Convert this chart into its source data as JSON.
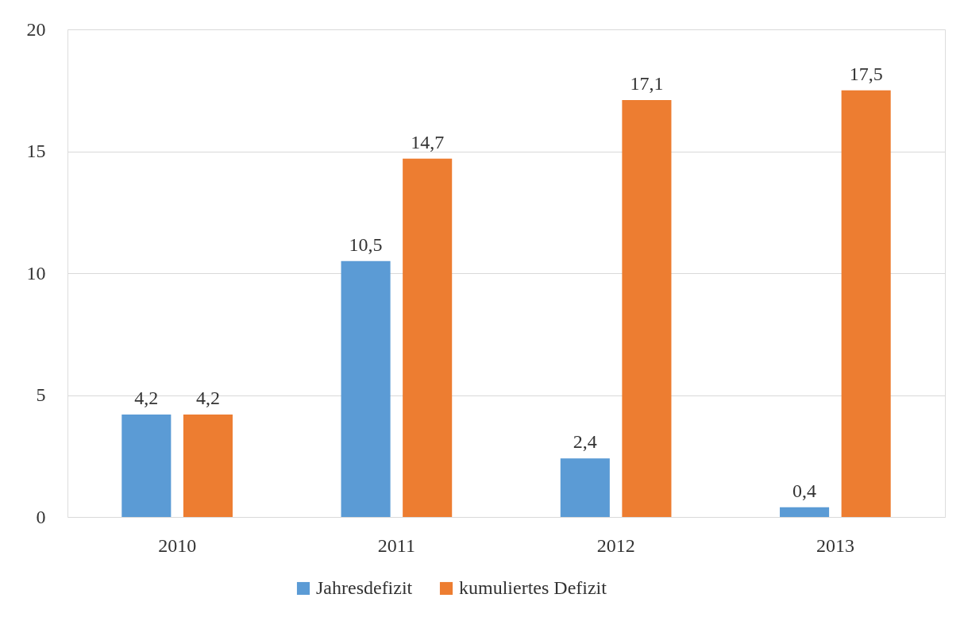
{
  "chart_data": {
    "type": "bar",
    "categories": [
      "2010",
      "2011",
      "2012",
      "2013"
    ],
    "series": [
      {
        "name": "Jahresdefizit",
        "color": "#5b9bd5",
        "values": [
          4.2,
          10.5,
          2.4,
          0.4
        ],
        "value_labels": [
          "4,2",
          "10,5",
          "2,4",
          "0,4"
        ]
      },
      {
        "name": "kumuliertes Defizit",
        "color": "#ed7d31",
        "values": [
          4.2,
          14.7,
          17.1,
          17.5
        ],
        "value_labels": [
          "4,2",
          "14,7",
          "17,1",
          "17,5"
        ]
      }
    ],
    "ylim": [
      0,
      20
    ],
    "yticks": [
      0,
      5,
      10,
      15,
      20
    ],
    "grid": "y",
    "legend": "bottom"
  }
}
